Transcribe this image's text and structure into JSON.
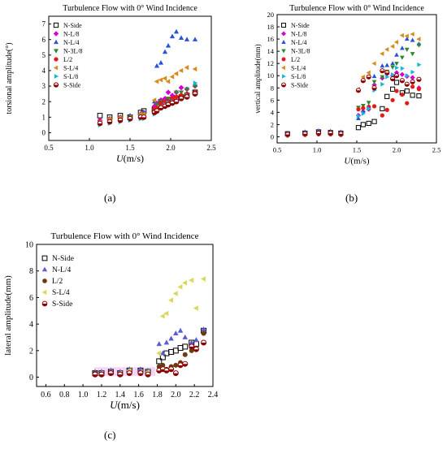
{
  "panel_labels": [
    "(a)",
    "(b)",
    "(c)"
  ],
  "colors": {
    "N-Side": "#000000",
    "N-L/8": "#d400d4",
    "N-L/4": "#2a52d6",
    "N-3L/8": "#2a8a2a",
    "L/2": "#e41a1a",
    "S-L/4": "#d98a1a",
    "S-L/8": "#16b8d8",
    "S-Side": "#8b0000",
    "N-L/4 (c)": "#5b5bd6",
    "L/2 (c)": "#6b3a10",
    "S-L/4 (c)": "#d8d860",
    "highlight": "#f2c2ec"
  },
  "chart_data": [
    {
      "type": "scatter",
      "title": "Turbulence  Flow with 0° Wind Incidence",
      "xlabel": "U(m/s)",
      "ylabel": "torsional amplitude(°)",
      "xlim": [
        0.5,
        2.5
      ],
      "ylim": [
        -0.5,
        7.5
      ],
      "xticks": [
        "0.5",
        "1.0",
        "1.5",
        "2.0",
        "2.5"
      ],
      "yticks": [
        "0",
        "1",
        "2",
        "3",
        "4",
        "5",
        "6",
        "7"
      ],
      "grid": false,
      "legend": "top-left",
      "x": [
        1.13,
        1.25,
        1.38,
        1.5,
        1.63,
        1.67,
        1.8,
        1.83,
        1.88,
        1.93,
        1.97,
        2.02,
        2.07,
        2.13,
        2.2,
        2.3
      ],
      "series": [
        {
          "name": "N-Side",
          "marker": "square",
          "values": [
            1.1,
            1.0,
            1.1,
            1.0,
            1.3,
            1.4,
            1.5,
            1.7,
            2.0,
            2.0,
            2.1,
            2.0,
            2.2,
            2.3,
            2.4,
            2.6
          ]
        },
        {
          "name": "N-L/8",
          "marker": "diamond",
          "values": [
            0.8,
            0.9,
            1.0,
            1.0,
            1.2,
            1.3,
            1.7,
            1.9,
            2.1,
            2.2,
            2.6,
            2.4,
            2.6,
            2.9,
            2.8,
            3.0
          ]
        },
        {
          "name": "N-L/4",
          "marker": "triangle-up",
          "values": [
            0.6,
            0.9,
            1.0,
            1.1,
            1.2,
            1.3,
            2.0,
            4.3,
            4.5,
            5.2,
            5.6,
            6.2,
            6.5,
            6.1,
            6.0,
            6.0
          ]
        },
        {
          "name": "N-3L/8",
          "marker": "triangle-down",
          "values": [
            0.6,
            0.8,
            0.8,
            1.0,
            1.1,
            1.2,
            1.4,
            1.8,
            2.0,
            1.9,
            2.2,
            2.2,
            2.6,
            2.6,
            2.8,
            3.0
          ]
        },
        {
          "name": "L/2",
          "marker": "circle",
          "values": [
            0.7,
            0.8,
            0.9,
            0.9,
            1.0,
            1.1,
            1.5,
            1.6,
            1.9,
            2.0,
            2.0,
            2.2,
            2.3,
            2.4,
            2.5,
            2.6
          ]
        },
        {
          "name": "S-L/4",
          "marker": "triangle-left",
          "values": [
            0.7,
            0.9,
            1.0,
            1.0,
            1.2,
            1.2,
            2.1,
            3.3,
            3.4,
            3.5,
            3.3,
            3.6,
            3.8,
            4.0,
            4.2,
            4.1
          ]
        },
        {
          "name": "S-L/8",
          "marker": "triangle-right",
          "values": [
            0.5,
            0.6,
            0.7,
            0.8,
            0.9,
            0.9,
            1.2,
            1.3,
            1.6,
            1.8,
            1.9,
            2.0,
            2.0,
            2.2,
            2.4,
            3.2
          ]
        },
        {
          "name": "S-Side",
          "marker": "half-circle",
          "values": [
            0.6,
            0.7,
            0.8,
            0.9,
            1.0,
            1.0,
            1.3,
            1.4,
            1.6,
            1.7,
            1.8,
            1.9,
            2.0,
            2.2,
            2.3,
            2.5
          ]
        }
      ]
    },
    {
      "type": "scatter",
      "title": "Turbulence  Flow with 0° Wind Incidence",
      "xlabel": "U(m/s)",
      "ylabel": "vertical amplitude(mm)",
      "xlim": [
        0.5,
        2.5
      ],
      "ylim": [
        -1,
        20
      ],
      "xticks": [
        "0.5",
        "1.0",
        "1.5",
        "2.0",
        "2.5"
      ],
      "yticks": [
        "0",
        "2",
        "4",
        "6",
        "8",
        "10",
        "12",
        "14",
        "16",
        "18",
        "20"
      ],
      "grid": false,
      "legend": "top-left",
      "x": [
        0.63,
        0.85,
        1.02,
        1.17,
        1.3,
        1.52,
        1.58,
        1.65,
        1.72,
        1.82,
        1.88,
        1.95,
        2.0,
        2.07,
        2.13,
        2.2,
        2.28
      ],
      "series": [
        {
          "name": "N-Side",
          "marker": "square",
          "values": [
            0.5,
            0.6,
            0.8,
            0.7,
            0.6,
            1.5,
            2.0,
            2.2,
            2.5,
            4.6,
            6.6,
            7.8,
            8.9,
            7.2,
            7.5,
            6.8,
            6.7
          ]
        },
        {
          "name": "N-L/8",
          "marker": "diamond",
          "values": [
            0.4,
            0.5,
            0.6,
            0.6,
            0.5,
            3.5,
            4.1,
            4.5,
            8.5,
            9.6,
            10.3,
            10.0,
            10.5,
            10.2,
            9.9,
            9.7,
            8.0
          ]
        },
        {
          "name": "N-L/4",
          "marker": "triangle-up",
          "values": [
            0.6,
            0.8,
            1.0,
            0.9,
            0.8,
            3.0,
            4.3,
            5.0,
            9.9,
            11.6,
            11.7,
            12.0,
            13.4,
            14.5,
            16.0,
            15.8,
            15.2
          ]
        },
        {
          "name": "N-3L/8",
          "marker": "triangle-down",
          "values": [
            0.3,
            0.4,
            0.5,
            0.5,
            0.4,
            4.8,
            5.1,
            5.6,
            9.0,
            9.8,
            10.7,
            11.4,
            12.0,
            13.0,
            14.3,
            13.6,
            15.0
          ]
        },
        {
          "name": "L/2",
          "marker": "circle",
          "values": [
            0.2,
            0.3,
            0.4,
            0.4,
            0.3,
            4.5,
            4.7,
            4.9,
            5.0,
            3.5,
            4.4,
            6.0,
            7.5,
            6.9,
            5.5,
            8.2,
            7.8
          ]
        },
        {
          "name": "S-L/4",
          "marker": "triangle-left",
          "values": [
            0.5,
            0.6,
            0.7,
            0.7,
            0.6,
            7.8,
            9.8,
            10.5,
            12.0,
            13.6,
            14.3,
            14.8,
            15.5,
            16.6,
            16.5,
            16.8,
            16.0
          ]
        },
        {
          "name": "S-L/8",
          "marker": "triangle-right",
          "values": [
            0.3,
            0.4,
            0.5,
            0.5,
            0.4,
            3.4,
            3.8,
            4.6,
            7.6,
            8.6,
            9.8,
            10.2,
            11.3,
            11.2,
            10.0,
            10.6,
            11.8
          ]
        },
        {
          "name": "S-Side",
          "marker": "half-circle",
          "values": [
            0.4,
            0.5,
            0.6,
            0.6,
            0.5,
            7.6,
            9.2,
            9.8,
            8.0,
            10.8,
            10.5,
            9.5,
            10.0,
            9.2,
            8.6,
            9.0,
            9.4
          ]
        }
      ]
    },
    {
      "type": "scatter",
      "title": "Turbulence  Flow with 0° Wind Incidence",
      "xlabel": "U(m/s)",
      "ylabel": "lateral amplitude(mm)",
      "xlim": [
        0.5,
        2.4
      ],
      "ylim": [
        -0.7,
        10
      ],
      "xticks": [
        "0.6",
        "0.8",
        "1.0",
        "1.2",
        "1.4",
        "1.6",
        "1.8",
        "2.0",
        "2.2",
        "2.4"
      ],
      "yticks": [
        "0",
        "2",
        "4",
        "6",
        "8",
        "10"
      ],
      "grid": false,
      "legend": "top-left",
      "x": [
        1.13,
        1.2,
        1.3,
        1.4,
        1.5,
        1.62,
        1.7,
        1.82,
        1.86,
        1.9,
        1.95,
        2.0,
        2.05,
        2.1,
        2.17,
        2.22,
        2.3
      ],
      "series": [
        {
          "name": "N-Side",
          "marker": "square",
          "values": [
            0.3,
            0.3,
            0.4,
            0.3,
            0.5,
            0.5,
            0.4,
            1.2,
            1.5,
            1.8,
            1.9,
            2.0,
            2.2,
            2.3,
            2.6,
            2.5,
            3.5
          ]
        },
        {
          "name": "N-L/4",
          "marker": "triangle-up",
          "values": [
            0.4,
            0.4,
            0.5,
            0.4,
            0.6,
            0.6,
            0.5,
            2.5,
            1.8,
            2.6,
            2.9,
            3.3,
            3.5,
            3.0,
            2.6,
            2.8,
            3.6
          ]
        },
        {
          "name": "L/2",
          "marker": "circle",
          "values": [
            0.3,
            0.2,
            0.3,
            0.2,
            0.4,
            0.3,
            0.3,
            0.8,
            0.9,
            0.6,
            0.8,
            0.9,
            1.1,
            1.7,
            2.0,
            2.2,
            3.3
          ]
        },
        {
          "name": "S-L/4",
          "marker": "triangle-left",
          "values": [
            0.2,
            0.3,
            0.3,
            0.3,
            0.5,
            0.4,
            0.4,
            1.8,
            4.6,
            4.8,
            5.8,
            6.3,
            6.8,
            7.1,
            7.3,
            5.2,
            7.4
          ]
        },
        {
          "name": "S-Side",
          "marker": "half-circle",
          "values": [
            0.2,
            0.2,
            0.3,
            0.2,
            0.3,
            0.3,
            0.2,
            0.5,
            0.6,
            0.5,
            0.6,
            0.3,
            0.9,
            1.0,
            2.3,
            2.1,
            2.6
          ]
        }
      ]
    }
  ]
}
